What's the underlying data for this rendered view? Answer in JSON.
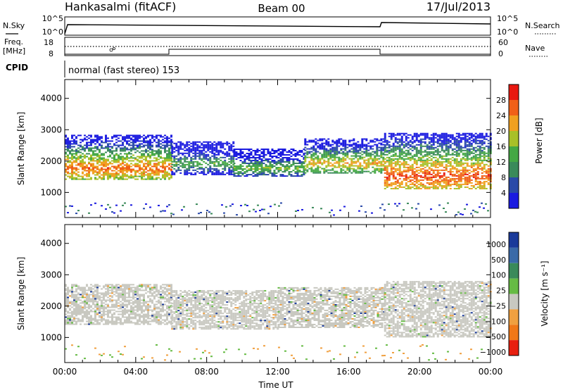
{
  "header": {
    "station": "Hankasalmi (fitACF)",
    "beam": "Beam 00",
    "date": "17/Jul/2013"
  },
  "noise_panel": {
    "left_label": "N.Sky",
    "right_label": "N.Search",
    "left_ticks": [
      "10^5",
      "10^0"
    ],
    "right_ticks": [
      "10^5",
      "10^0"
    ]
  },
  "freq_panel": {
    "left_label": "Freq.",
    "left_unit": "[MHz]",
    "right_label": "Nave",
    "left_ticks": [
      "18",
      "8"
    ],
    "right_ticks": [
      "60",
      "0"
    ]
  },
  "cpid": {
    "label": "CPID",
    "program": "normal (fast stereo) 153"
  },
  "colors": {
    "power_scale": [
      "#1a1ae0",
      "#2a4aa8",
      "#3a8a5a",
      "#44a844",
      "#a8c028",
      "#f0a020",
      "#f06018",
      "#e81810"
    ],
    "velocity_scale": [
      "#1a3a9a",
      "#3a6aa8",
      "#3a8a5a",
      "#66bb44",
      "#c8c8c0",
      "#f0a040",
      "#f07818",
      "#e82010"
    ],
    "power_data": "#f05018",
    "velocity_gray": "#c8c8c0"
  },
  "chart_data": [
    {
      "type": "heatmap",
      "name": "power",
      "ylabel": "Slant Range [km]",
      "yticks": [
        "1000",
        "2000",
        "3000",
        "4000"
      ],
      "ylim": [
        200,
        4600
      ],
      "xlim_hours": [
        0,
        24
      ],
      "colorbar_label": "Power [dB]",
      "colorbar_ticks": [
        "4",
        "8",
        "12",
        "16",
        "20",
        "24",
        "28"
      ],
      "colorbar_range": [
        0,
        32
      ],
      "bands": [
        {
          "t_start": 0.0,
          "t_end": 6.0,
          "range_top": 2800,
          "range_bottom": 1400,
          "peak_km": 1750,
          "level": 26
        },
        {
          "t_start": 6.0,
          "t_end": 9.5,
          "range_top": 2600,
          "range_bottom": 1550,
          "peak_km": 1900,
          "level": 14
        },
        {
          "t_start": 9.5,
          "t_end": 13.5,
          "range_top": 2400,
          "range_bottom": 1500,
          "peak_km": 1750,
          "level": 16
        },
        {
          "t_start": 13.5,
          "t_end": 18.0,
          "range_top": 2700,
          "range_bottom": 1600,
          "peak_km": 1900,
          "level": 22
        },
        {
          "t_start": 18.0,
          "t_end": 24.0,
          "range_top": 2900,
          "range_bottom": 1100,
          "peak_km": 1500,
          "level": 28
        }
      ]
    },
    {
      "type": "heatmap",
      "name": "velocity",
      "ylabel": "Slant Range [km]",
      "yticks": [
        "1000",
        "2000",
        "3000",
        "4000"
      ],
      "ylim": [
        200,
        4600
      ],
      "xlim_hours": [
        0,
        24
      ],
      "colorbar_label": "Velocity [m s⁻¹]",
      "colorbar_ticks": [
        "1000",
        "500",
        "100",
        "25",
        "−25",
        "−100",
        "−500",
        "−1000"
      ],
      "bands": [
        {
          "t_start": 0.0,
          "t_end": 6.0,
          "range_top": 2700,
          "range_bottom": 1400
        },
        {
          "t_start": 6.0,
          "t_end": 12.0,
          "range_top": 2500,
          "range_bottom": 1250
        },
        {
          "t_start": 12.0,
          "t_end": 18.0,
          "range_top": 2600,
          "range_bottom": 1300
        },
        {
          "t_start": 18.0,
          "t_end": 24.0,
          "range_top": 2800,
          "range_bottom": 1000
        }
      ],
      "xticks": [
        "00:00",
        "04:00",
        "08:00",
        "12:00",
        "16:00",
        "20:00",
        "00:00"
      ],
      "xlabel": "Time UT"
    }
  ]
}
